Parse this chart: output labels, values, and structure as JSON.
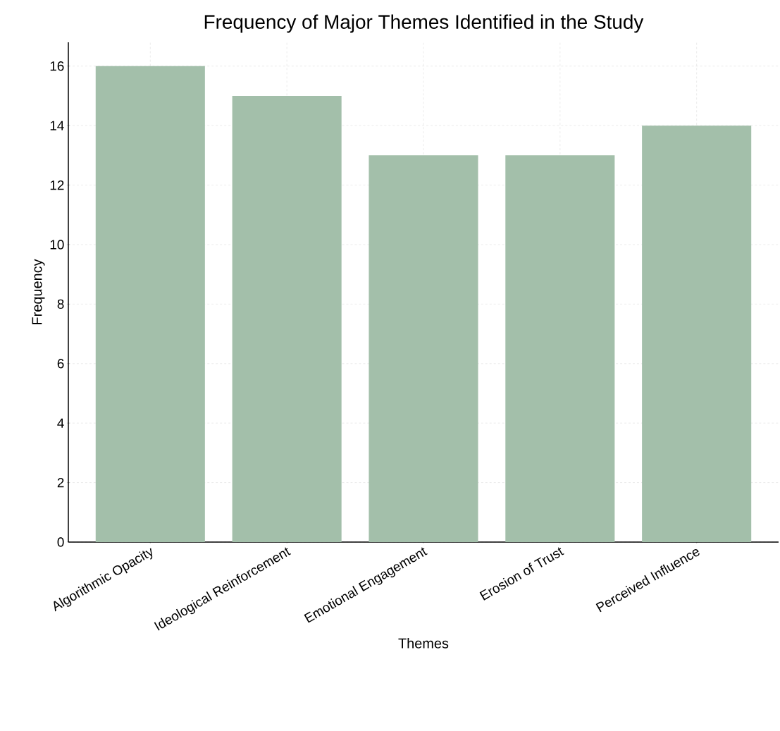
{
  "chart_data": {
    "type": "bar",
    "title": "Frequency of Major Themes Identified in the Study",
    "xlabel": "Themes",
    "ylabel": "Frequency",
    "categories": [
      "Algorithmic Opacity",
      "Ideological Reinforcement",
      "Emotional Engagement",
      "Erosion of Trust",
      "Perceived Influence"
    ],
    "values": [
      16,
      15,
      13,
      13,
      14
    ],
    "color": "#a3bfaa",
    "ylim": [
      0,
      16.8
    ],
    "yticks": [
      0,
      2,
      4,
      6,
      8,
      10,
      12,
      14,
      16
    ],
    "grid": true
  }
}
